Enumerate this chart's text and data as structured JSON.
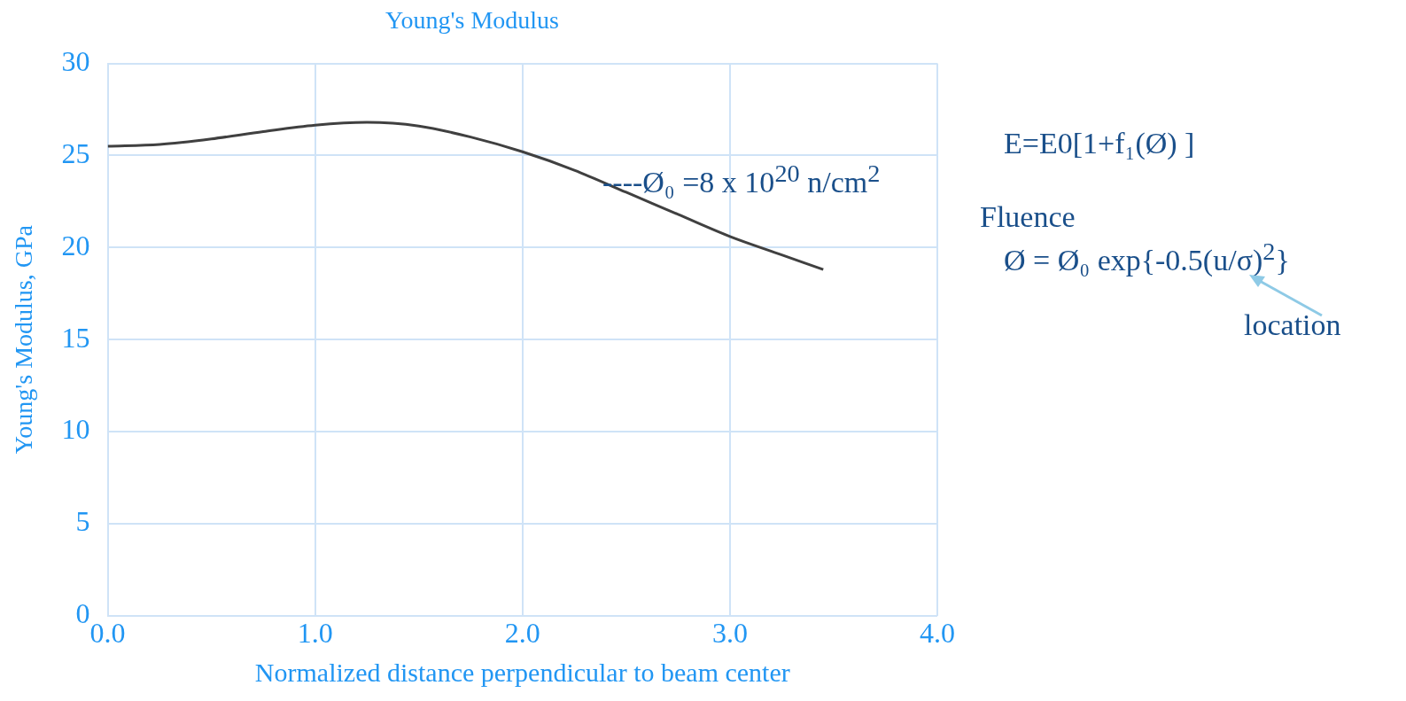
{
  "chart_data": {
    "type": "line",
    "title": "Young's Modulus",
    "xlabel": "Normalized distance perpendicular to beam center",
    "ylabel": "Young's Modulus, GPa",
    "x": [
      0,
      0.25,
      0.5,
      0.75,
      1.0,
      1.25,
      1.5,
      1.75,
      2.0,
      2.25,
      2.5,
      2.75,
      3.0,
      3.25,
      3.45
    ],
    "series": [
      {
        "color": "#404040",
        "values": [
          25.5,
          25.6,
          25.9,
          26.3,
          26.65,
          26.8,
          26.6,
          26.0,
          25.2,
          24.2,
          23.0,
          21.8,
          20.6,
          19.6,
          18.8
        ]
      }
    ],
    "xlim": [
      0,
      4
    ],
    "xticks": [
      {
        "value": 0,
        "label": "0.0"
      },
      {
        "value": 1,
        "label": "1.0"
      },
      {
        "value": 2,
        "label": "2.0"
      },
      {
        "value": 3,
        "label": "3.0"
      },
      {
        "value": 4,
        "label": "4.0"
      }
    ],
    "ylim": [
      0,
      30
    ],
    "yticks": [
      0,
      5,
      10,
      15,
      20,
      25,
      30
    ],
    "grid": true,
    "legend": false,
    "marker": "none",
    "line_style": "solid",
    "annotations": [
      "----Ø₀ =8 x 10$^{20}$ n/cm$^{2}$",
      "E=E0[1+f₁(Ø) ]",
      "Fluence",
      "Ø = Ø₀ exp{-0.5(u/σ)$^{2}$}",
      "location"
    ]
  }
}
